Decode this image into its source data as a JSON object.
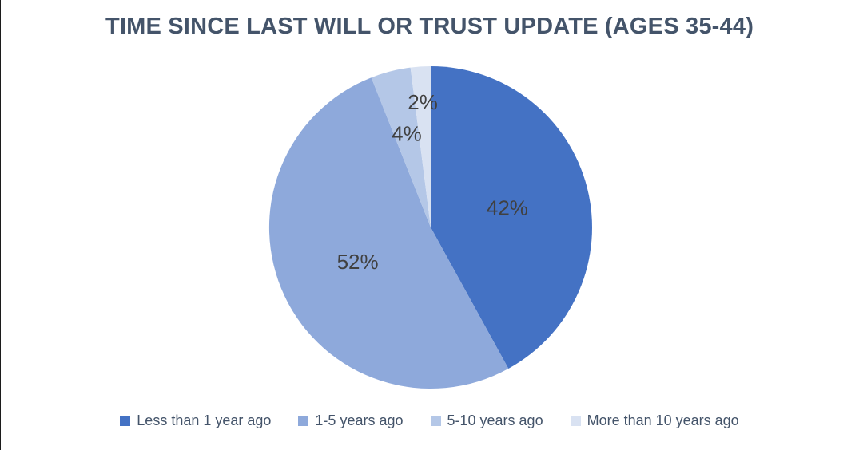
{
  "chart_data": {
    "type": "pie",
    "title": "TIME SINCE LAST WILL OR TRUST UPDATE (AGES 35-44)",
    "categories": [
      "Less than 1 year ago",
      "1-5 years ago",
      "5-10 years ago",
      "More than 10 years ago"
    ],
    "values": [
      42,
      52,
      4,
      2
    ],
    "data_labels": [
      "42%",
      "52%",
      "4%",
      "2%"
    ],
    "colors": [
      "#4472C4",
      "#8EA9DB",
      "#B4C7E7",
      "#D9E2F2"
    ],
    "title_color": "#44546A",
    "legend_text_color": "#44546A",
    "data_label_color": "#404040",
    "background_color": "#FFFFFF",
    "legend_position": "bottom",
    "start_angle_deg": 0,
    "direction": "clockwise",
    "label_radius_fractions": [
      0.49,
      0.5,
      0.6,
      0.78
    ]
  }
}
